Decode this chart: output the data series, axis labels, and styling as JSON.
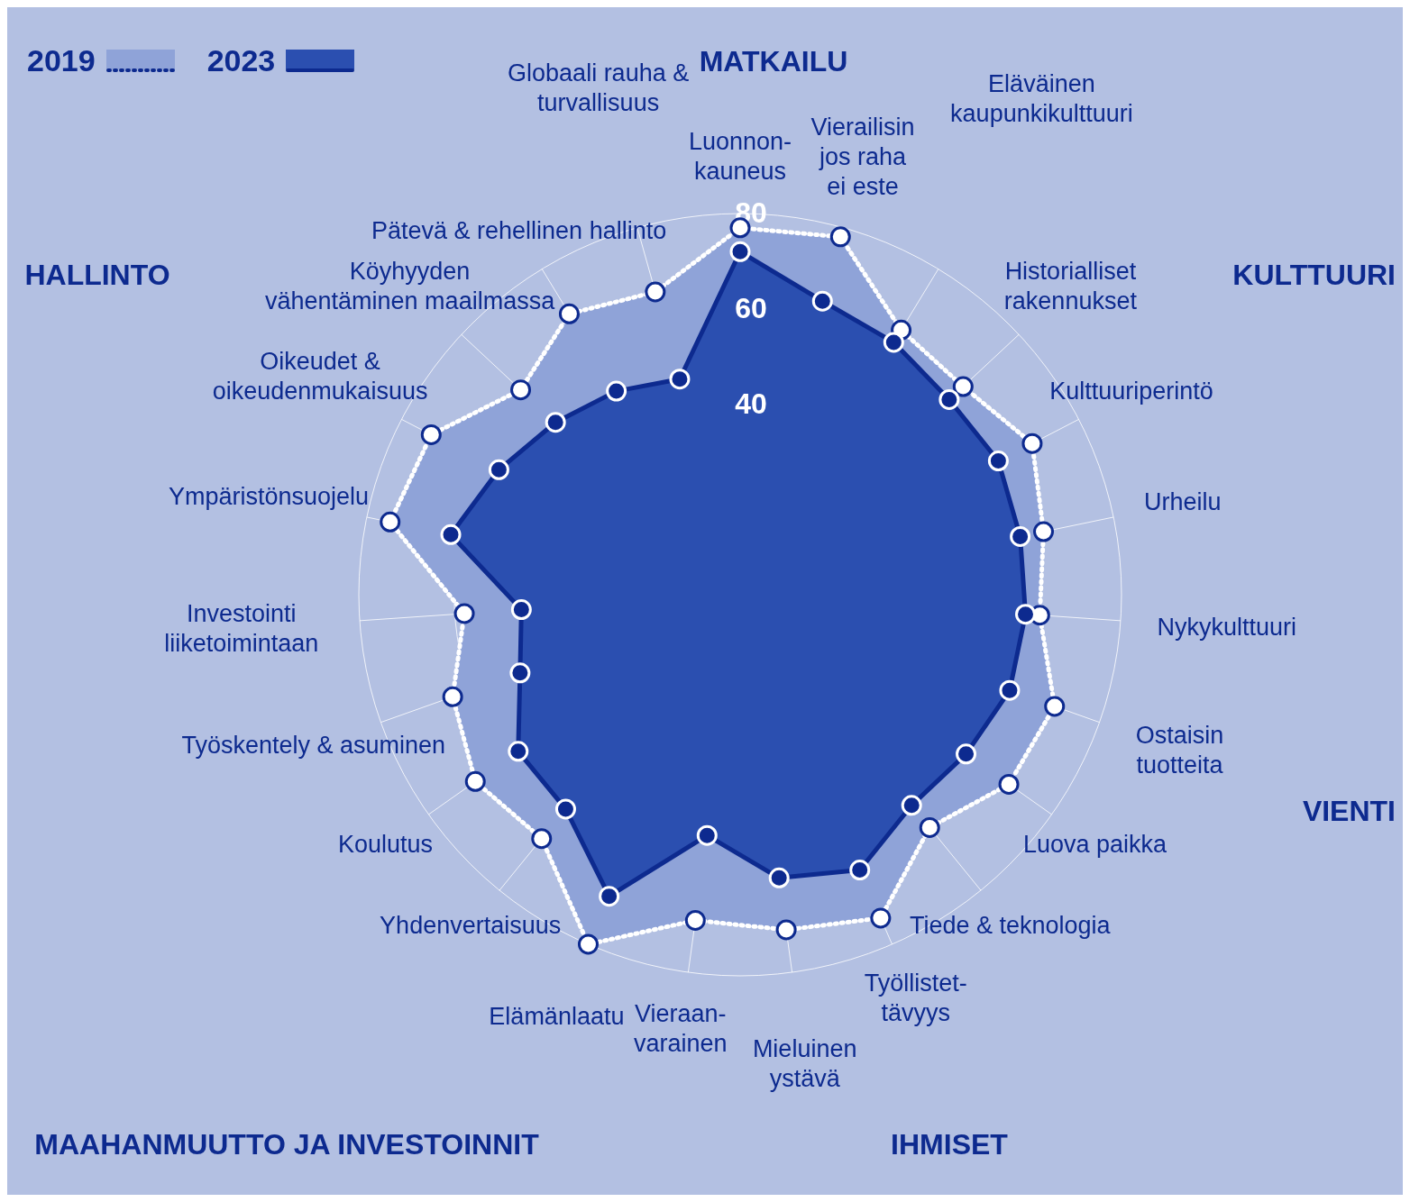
{
  "chart_data": {
    "type": "radar",
    "categories": [
      "Luonnon-\nkauneus",
      "Vierailisin\njos raha\nei este",
      "Eläväinen\nkaupunkikulttuuri",
      "Historialliset\nrakennukset",
      "Kulttuuriperintö",
      "Urheilu",
      "Nykykulttuuri",
      "Ostaisin\ntuotteita",
      "Luova paikka",
      "Tiede & teknologia",
      "Työllistet-\ntävyys",
      "Mieluinen\nystävä",
      "Vieraan-\nvarainen",
      "Elämänlaatu",
      "Yhdenvertaisuus",
      "Koulutus",
      "Työskentely & asuminen",
      "Investointi\nliiketoimintaan",
      "Ympäristönsuojelu",
      "Oikeudet &\noikeudenmukaisuus",
      "Köyhyyden\nvähentäminen maailmassa",
      "Pätevä & rehellinen hallinto",
      "Globaali rauha &\nturvallisuus"
    ],
    "series": [
      {
        "name": "2019",
        "color": "#8fa3d8",
        "line_style": "dotted",
        "values": [
          77,
          78,
          65,
          64,
          69,
          65,
          63,
          70,
          69,
          63,
          74,
          71,
          69,
          80,
          66,
          68,
          64,
          58,
          75,
          73,
          63,
          69,
          66
        ]
      },
      {
        "name": "2023",
        "color": "#2b4fb0",
        "line_style": "solid",
        "values": [
          72,
          64,
          62,
          60,
          61,
          60,
          60,
          60,
          58,
          57,
          63,
          60,
          51,
          69,
          58,
          57,
          49,
          46,
          62,
          57,
          53,
          50,
          47
        ]
      }
    ],
    "ylim": [
      0,
      80
    ],
    "yticks": [
      40,
      60,
      80
    ],
    "grid": true,
    "legend": "top left",
    "marker": "circle",
    "annotations": [
      "MATKAILU",
      "KULTTUURI",
      "VIENTI",
      "IHMISET",
      "MAAHANMUUTTO JA INVESTOINNIT",
      "HALLINTO"
    ]
  }
}
